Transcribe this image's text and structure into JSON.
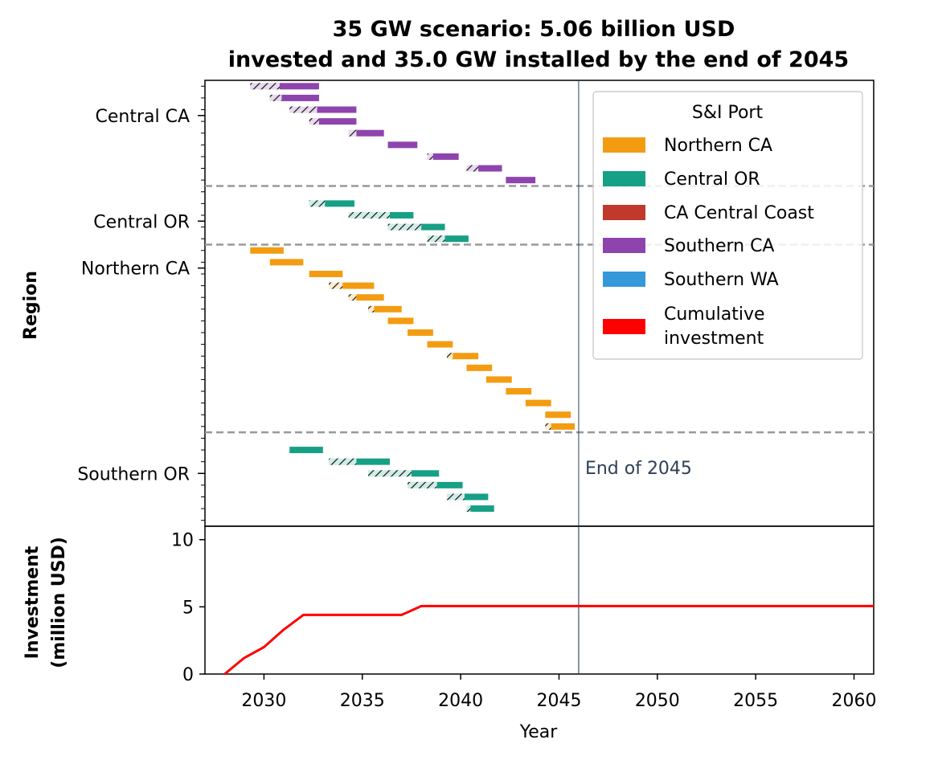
{
  "chart_data": [
    {
      "type": "gantt",
      "title_line1": "35 GW scenario: 5.06 billion USD",
      "title_line2": "invested and 35.0 GW installed by the end of 2045",
      "ylabel": "Region",
      "region_labels": [
        "Central CA",
        "Central OR",
        "Northern CA",
        "Southern OR"
      ],
      "end_marker": {
        "label": "End of 2045",
        "x": 2046.0
      },
      "xlim": [
        2027,
        2061
      ],
      "legend": {
        "title": "S&I Port",
        "placement": "upper right",
        "entries": [
          {
            "label": "Northern CA",
            "color": "#f39c12"
          },
          {
            "label": "Central OR",
            "color": "#16a085"
          },
          {
            "label": "CA Central Coast",
            "color": "#c0392b"
          },
          {
            "label": "Southern CA",
            "color": "#8e44ad"
          },
          {
            "label": "Southern WA",
            "color": "#3498db"
          },
          {
            "label": "Cumulative\ninvestment",
            "color": "#ff0000"
          }
        ]
      },
      "colors": {
        "Southern CA": "#8e44ad",
        "Central OR": "#16a085",
        "Northern CA": "#f39c12"
      },
      "tasks": [
        {
          "row": 0,
          "port": "Southern CA",
          "pre": [
            2029.3,
            2030.8
          ],
          "inst": [
            2030.8,
            2032.8
          ]
        },
        {
          "row": 1,
          "port": "Southern CA",
          "pre": [
            2030.3,
            2030.9
          ],
          "inst": [
            2030.9,
            2032.8
          ]
        },
        {
          "row": 2,
          "port": "Southern CA",
          "pre": [
            2031.3,
            2032.7
          ],
          "inst": [
            2032.7,
            2034.7
          ]
        },
        {
          "row": 3,
          "port": "Southern CA",
          "pre": [
            2032.3,
            2032.8
          ],
          "inst": [
            2032.8,
            2034.7
          ]
        },
        {
          "row": 4,
          "port": "Southern CA",
          "pre": [
            2034.3,
            2034.7
          ],
          "inst": [
            2034.7,
            2036.1
          ]
        },
        {
          "row": 5,
          "port": "Southern CA",
          "pre": null,
          "inst": [
            2036.3,
            2037.8
          ]
        },
        {
          "row": 6,
          "port": "Southern CA",
          "pre": [
            2038.3,
            2038.6
          ],
          "inst": [
            2038.6,
            2039.9
          ]
        },
        {
          "row": 7,
          "port": "Southern CA",
          "pre": [
            2040.3,
            2040.9
          ],
          "inst": [
            2040.9,
            2042.1
          ]
        },
        {
          "row": 8,
          "port": "Southern CA",
          "pre": null,
          "inst": [
            2042.3,
            2043.8
          ]
        },
        {
          "row": 10,
          "port": "Central OR",
          "pre": [
            2032.3,
            2033.1
          ],
          "inst": [
            2033.1,
            2034.6
          ]
        },
        {
          "row": 11,
          "port": "Central OR",
          "pre": [
            2034.3,
            2036.4
          ],
          "inst": [
            2036.4,
            2037.6
          ]
        },
        {
          "row": 12,
          "port": "Central OR",
          "pre": [
            2036.3,
            2038.0
          ],
          "inst": [
            2038.0,
            2039.2
          ]
        },
        {
          "row": 13,
          "port": "Central OR",
          "pre": [
            2038.3,
            2039.2
          ],
          "inst": [
            2039.2,
            2040.4
          ]
        },
        {
          "row": 14,
          "port": "Northern CA",
          "pre": null,
          "inst": [
            2029.3,
            2031.0
          ]
        },
        {
          "row": 15,
          "port": "Northern CA",
          "pre": null,
          "inst": [
            2030.3,
            2032.0
          ]
        },
        {
          "row": 16,
          "port": "Northern CA",
          "pre": null,
          "inst": [
            2032.3,
            2034.0
          ]
        },
        {
          "row": 17,
          "port": "Northern CA",
          "pre": [
            2033.3,
            2034.0
          ],
          "inst": [
            2034.0,
            2035.6
          ]
        },
        {
          "row": 18,
          "port": "Northern CA",
          "pre": [
            2034.3,
            2034.7
          ],
          "inst": [
            2034.7,
            2036.1
          ]
        },
        {
          "row": 19,
          "port": "Northern CA",
          "pre": [
            2035.3,
            2035.6
          ],
          "inst": [
            2035.6,
            2037.0
          ]
        },
        {
          "row": 20,
          "port": "Northern CA",
          "pre": null,
          "inst": [
            2036.3,
            2037.6
          ]
        },
        {
          "row": 21,
          "port": "Northern CA",
          "pre": null,
          "inst": [
            2037.3,
            2038.6
          ]
        },
        {
          "row": 22,
          "port": "Northern CA",
          "pre": null,
          "inst": [
            2038.3,
            2039.6
          ]
        },
        {
          "row": 23,
          "port": "Northern CA",
          "pre": [
            2039.3,
            2039.6
          ],
          "inst": [
            2039.6,
            2040.9
          ]
        },
        {
          "row": 24,
          "port": "Northern CA",
          "pre": null,
          "inst": [
            2040.3,
            2041.6
          ]
        },
        {
          "row": 25,
          "port": "Northern CA",
          "pre": null,
          "inst": [
            2041.3,
            2042.6
          ]
        },
        {
          "row": 26,
          "port": "Northern CA",
          "pre": null,
          "inst": [
            2042.3,
            2043.6
          ]
        },
        {
          "row": 27,
          "port": "Northern CA",
          "pre": null,
          "inst": [
            2043.3,
            2044.6
          ]
        },
        {
          "row": 28,
          "port": "Northern CA",
          "pre": null,
          "inst": [
            2044.3,
            2045.6
          ]
        },
        {
          "row": 29,
          "port": "Northern CA",
          "pre": [
            2044.3,
            2044.6
          ],
          "inst": [
            2044.6,
            2045.8
          ]
        },
        {
          "row": 31,
          "port": "Central OR",
          "pre": null,
          "inst": [
            2031.3,
            2033.0
          ]
        },
        {
          "row": 32,
          "port": "Central OR",
          "pre": [
            2033.3,
            2034.7
          ],
          "inst": [
            2034.7,
            2036.4
          ]
        },
        {
          "row": 33,
          "port": "Central OR",
          "pre": [
            2035.3,
            2037.5
          ],
          "inst": [
            2037.5,
            2038.9
          ]
        },
        {
          "row": 34,
          "port": "Central OR",
          "pre": [
            2037.3,
            2038.8
          ],
          "inst": [
            2038.8,
            2040.1
          ]
        },
        {
          "row": 35,
          "port": "Central OR",
          "pre": [
            2039.3,
            2040.2
          ],
          "inst": [
            2040.2,
            2041.4
          ]
        },
        {
          "row": 36,
          "port": "Central OR",
          "pre": [
            2040.3,
            2040.5
          ],
          "inst": [
            2040.5,
            2041.7
          ]
        }
      ]
    },
    {
      "type": "line",
      "ylabel_line1": "Investment",
      "ylabel_line2": "(million USD)",
      "xlabel": "Year",
      "xlim": [
        2027,
        2061
      ],
      "ylim": [
        0,
        11
      ],
      "xticks": [
        2030,
        2035,
        2040,
        2045,
        2050,
        2055,
        2060
      ],
      "yticks": [
        0,
        5,
        10
      ],
      "series": [
        {
          "color": "#ff0000",
          "x": [
            2028,
            2029,
            2030,
            2031,
            2032,
            2033,
            2034,
            2035,
            2036,
            2037,
            2038,
            2039,
            2040,
            2041,
            2042,
            2043,
            2044,
            2045,
            2046,
            2047,
            2048,
            2049,
            2050,
            2051,
            2052,
            2053,
            2054,
            2055,
            2056,
            2057,
            2058,
            2059,
            2060,
            2061
          ],
          "y": [
            0.0,
            1.2,
            2.0,
            3.3,
            4.4,
            4.4,
            4.4,
            4.4,
            4.4,
            4.4,
            5.06,
            5.06,
            5.06,
            5.06,
            5.06,
            5.06,
            5.06,
            5.06,
            5.06,
            5.06,
            5.06,
            5.06,
            5.06,
            5.06,
            5.06,
            5.06,
            5.06,
            5.06,
            5.06,
            5.06,
            5.06,
            5.06,
            5.06,
            5.06
          ]
        }
      ]
    }
  ]
}
